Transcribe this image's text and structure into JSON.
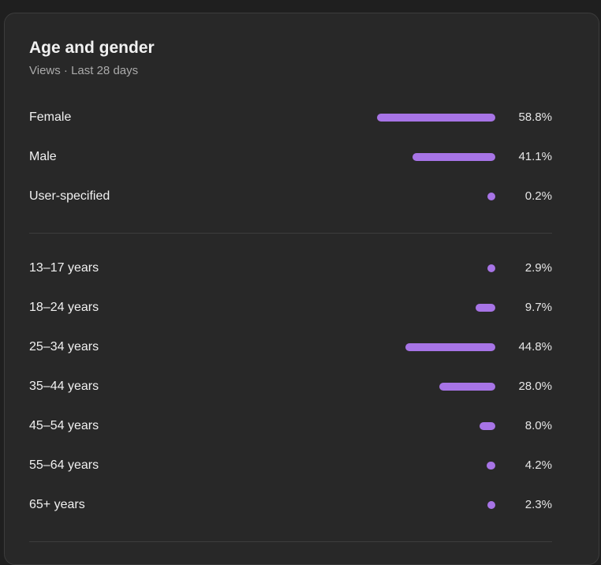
{
  "card": {
    "title": "Age and gender",
    "subtitle": "Views · Last 28 days"
  },
  "colors": {
    "bar": "#a774e6"
  },
  "gender": [
    {
      "label": "Female",
      "value": 58.8,
      "pct": "58.8%"
    },
    {
      "label": "Male",
      "value": 41.1,
      "pct": "41.1%"
    },
    {
      "label": "User-specified",
      "value": 0.2,
      "pct": "0.2%"
    }
  ],
  "age": [
    {
      "label": "13–17 years",
      "value": 2.9,
      "pct": "2.9%"
    },
    {
      "label": "18–24 years",
      "value": 9.7,
      "pct": "9.7%"
    },
    {
      "label": "25–34 years",
      "value": 44.8,
      "pct": "44.8%"
    },
    {
      "label": "35–44 years",
      "value": 28.0,
      "pct": "28.0%"
    },
    {
      "label": "45–54 years",
      "value": 8.0,
      "pct": "8.0%"
    },
    {
      "label": "55–64 years",
      "value": 4.2,
      "pct": "4.2%"
    },
    {
      "label": "65+ years",
      "value": 2.3,
      "pct": "2.3%"
    }
  ]
}
